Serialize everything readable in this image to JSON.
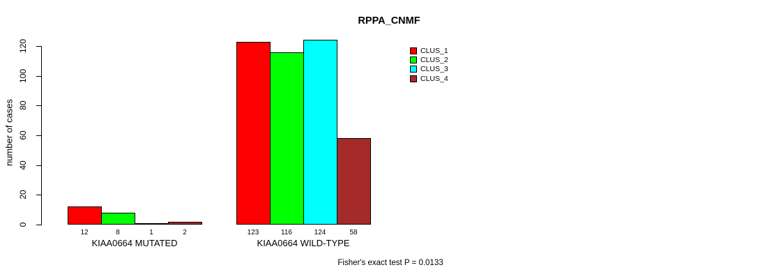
{
  "chart_data": {
    "type": "bar",
    "title": "RPPA_CNMF",
    "ylabel": "number of cases",
    "xlabel": "",
    "categories": [
      "KIAA0664 MUTATED",
      "KIAA0664 WILD-TYPE"
    ],
    "series": [
      {
        "name": "CLUS_1",
        "color": "#FF0000",
        "values": [
          12,
          123
        ]
      },
      {
        "name": "CLUS_2",
        "color": "#00FF00",
        "values": [
          8,
          116
        ]
      },
      {
        "name": "CLUS_3",
        "color": "#00FFFF",
        "values": [
          1,
          124
        ]
      },
      {
        "name": "CLUS_4",
        "color": "#A52A2A",
        "values": [
          2,
          58
        ]
      }
    ],
    "yticks": [
      0,
      20,
      40,
      60,
      80,
      100,
      120
    ],
    "ylim": [
      0,
      124
    ],
    "bar_value_labels": true,
    "grid": false,
    "legend_position": "top-right",
    "annotation": "Fisher's exact test P = 0.0133"
  }
}
